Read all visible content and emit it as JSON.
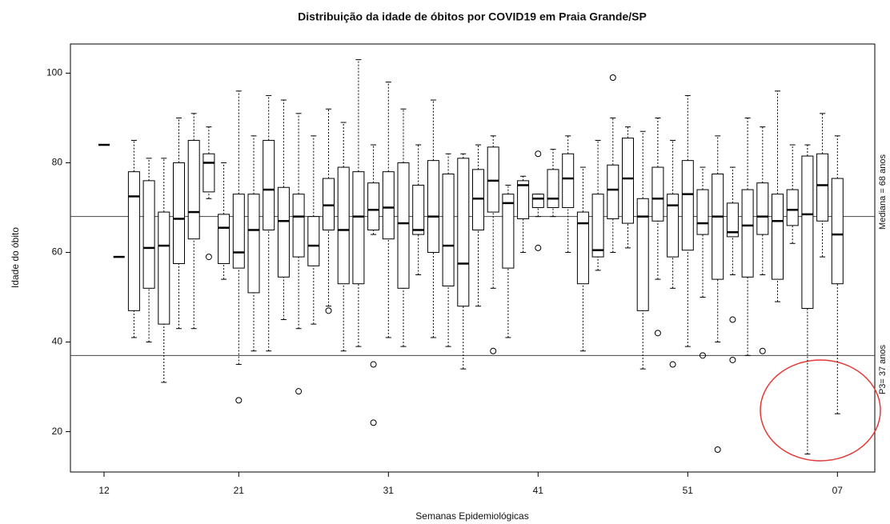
{
  "chart_data": {
    "type": "boxplot",
    "title": "Distribuição da idade de óbitos por COVID19 em Praia Grande/SP",
    "x_label": "Semanas Epidemiológicas",
    "y_label": "Idade do óbito",
    "categories": [
      "12",
      null,
      null,
      null,
      null,
      null,
      null,
      null,
      null,
      "21",
      null,
      null,
      null,
      null,
      null,
      null,
      null,
      null,
      null,
      "31",
      null,
      null,
      null,
      null,
      null,
      null,
      null,
      null,
      null,
      "41",
      null,
      null,
      null,
      null,
      null,
      null,
      null,
      null,
      null,
      "51",
      null,
      null,
      null,
      null,
      null,
      null,
      null,
      null,
      null,
      "07"
    ],
    "min": [
      84,
      59,
      41,
      40,
      31,
      43,
      43,
      72,
      54,
      35,
      38,
      38,
      45,
      43,
      44,
      48,
      38,
      39,
      64,
      41,
      39,
      55,
      41,
      39,
      34,
      48,
      52,
      41,
      60,
      68,
      68,
      60,
      38,
      56,
      60,
      61,
      34,
      54,
      52,
      39,
      50,
      40,
      55,
      37,
      55,
      49,
      62,
      15,
      59,
      24
    ],
    "q1": [
      84,
      59,
      47,
      52,
      44,
      57.5,
      63,
      73.5,
      57.5,
      56.5,
      51,
      65,
      54.5,
      59,
      57,
      65,
      53,
      53,
      65,
      63,
      52,
      64,
      60,
      52.5,
      48,
      65,
      69,
      56.5,
      67.5,
      70,
      70,
      70,
      53,
      59,
      67.5,
      66.5,
      47,
      67,
      59,
      60.5,
      64,
      54,
      63.5,
      54.5,
      64,
      54,
      66,
      47.5,
      67,
      53
    ],
    "median": [
      84,
      59,
      72.5,
      61,
      61.5,
      67.5,
      69,
      80,
      65.5,
      60,
      65,
      74,
      67,
      68,
      61.5,
      70.5,
      65,
      68,
      69.5,
      70,
      66.5,
      65,
      68,
      61.5,
      57.5,
      72,
      76,
      71,
      75,
      72,
      72,
      76.5,
      66.5,
      60.5,
      74,
      76.5,
      68,
      72,
      70.5,
      73,
      66.5,
      68,
      64.5,
      66,
      68,
      67,
      69.5,
      68.5,
      75,
      64
    ],
    "q3": [
      84,
      59,
      78,
      76,
      69,
      80,
      85,
      82,
      68.5,
      73,
      73,
      85,
      74.5,
      73,
      68,
      76.5,
      79,
      78,
      75.5,
      78,
      80,
      75,
      80.5,
      77.5,
      81,
      78.5,
      83.5,
      73,
      76,
      73,
      78.5,
      82,
      69,
      73,
      79.5,
      85.5,
      72,
      79,
      73,
      80.5,
      74,
      77.5,
      71,
      74,
      75.5,
      73,
      74,
      81.5,
      82,
      76.5
    ],
    "max": [
      84,
      59,
      85,
      81,
      81,
      90,
      91,
      88,
      80,
      96,
      86,
      95,
      94,
      91,
      86,
      92,
      89,
      103,
      84,
      98,
      92,
      84,
      94,
      82,
      82,
      84,
      86,
      75,
      77,
      73,
      83,
      86,
      79,
      85,
      90,
      88,
      87,
      90,
      85,
      95,
      79,
      86,
      79,
      90,
      88,
      96,
      84,
      84,
      91,
      86
    ],
    "outliers": [
      [],
      [],
      [],
      [],
      [],
      [],
      [],
      [
        59
      ],
      [],
      [
        27
      ],
      [],
      [],
      [],
      [
        29
      ],
      [],
      [
        47
      ],
      [],
      [],
      [
        35,
        22
      ],
      [],
      [],
      [],
      [],
      [],
      [],
      [],
      [
        38
      ],
      [],
      [],
      [
        82,
        61
      ],
      [],
      [],
      [],
      [],
      [
        99
      ],
      [],
      [],
      [
        42
      ],
      [
        35
      ],
      [],
      [
        37
      ],
      [
        16
      ],
      [
        45,
        36
      ],
      [],
      [
        38
      ],
      [],
      [],
      [],
      [],
      []
    ],
    "ylim": [
      11,
      106.5
    ],
    "yticks": [
      20,
      40,
      60,
      80,
      100
    ],
    "hlines": [
      {
        "value": 68,
        "label": "Mediana = 68 anos"
      },
      {
        "value": 37,
        "label": "P3= 37 anos"
      }
    ],
    "color": "#000000"
  }
}
